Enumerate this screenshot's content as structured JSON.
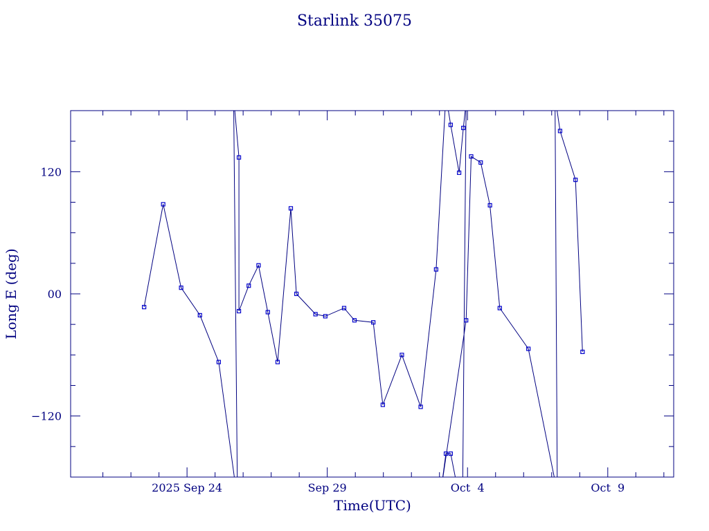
{
  "chart_data": {
    "type": "line",
    "title": "Starlink 35075",
    "xlabel": "Time(UTC)",
    "ylabel": "Long E (deg)",
    "xlim": [
      -4.15,
      17.35
    ],
    "ylim": [
      -180,
      180
    ],
    "x_unit": "days from 2025 Sep 24 00:00 UTC",
    "x_ticks": [
      {
        "value": 0,
        "label": "2025 Sep 24"
      },
      {
        "value": 5,
        "label": "Sep 29"
      },
      {
        "value": 10,
        "label": "Oct  4"
      },
      {
        "value": 15,
        "label": "Oct  9"
      }
    ],
    "y_ticks": [
      {
        "value": 120,
        "label": "120"
      },
      {
        "value": 0,
        "label": "00"
      },
      {
        "value": -120,
        "label": "−120"
      }
    ],
    "grid": false,
    "color": "#0000cc",
    "series": [
      {
        "points": [
          [
            -1.53,
            -13
          ],
          [
            -0.85,
            88
          ],
          [
            -0.21,
            6
          ],
          [
            0.46,
            -21
          ],
          [
            1.13,
            -67
          ],
          [
            1.8,
            -203
          ],
          [
            1.66,
            193
          ],
          [
            1.85,
            134
          ],
          [
            1.85,
            -17
          ],
          [
            2.2,
            8
          ],
          [
            2.55,
            28
          ],
          [
            2.88,
            -18
          ],
          [
            3.23,
            -67
          ],
          [
            3.7,
            84
          ],
          [
            3.9,
            0
          ],
          [
            4.58,
            -20
          ],
          [
            4.93,
            -22
          ],
          [
            5.6,
            -14
          ],
          [
            5.97,
            -26
          ],
          [
            6.64,
            -28
          ],
          [
            6.98,
            -109
          ],
          [
            7.66,
            -60
          ],
          [
            8.33,
            -111
          ],
          [
            8.88,
            24
          ],
          [
            9.23,
            195
          ],
          [
            9.4,
            166
          ],
          [
            9.7,
            119
          ],
          [
            9.85,
            163
          ],
          [
            9.95,
            188
          ],
          [
            9.82,
            -216
          ],
          [
            9.4,
            -157
          ],
          [
            9.23,
            -157
          ],
          [
            9.07,
            -190
          ],
          [
            9.95,
            -26
          ],
          [
            10.13,
            135
          ],
          [
            10.47,
            129
          ],
          [
            10.8,
            87
          ],
          [
            11.15,
            -14
          ],
          [
            12.17,
            -54
          ],
          [
            13.2,
            -195
          ],
          [
            13.12,
            194
          ],
          [
            13.3,
            160
          ],
          [
            13.85,
            112
          ],
          [
            14.1,
            -57
          ]
        ]
      }
    ]
  }
}
